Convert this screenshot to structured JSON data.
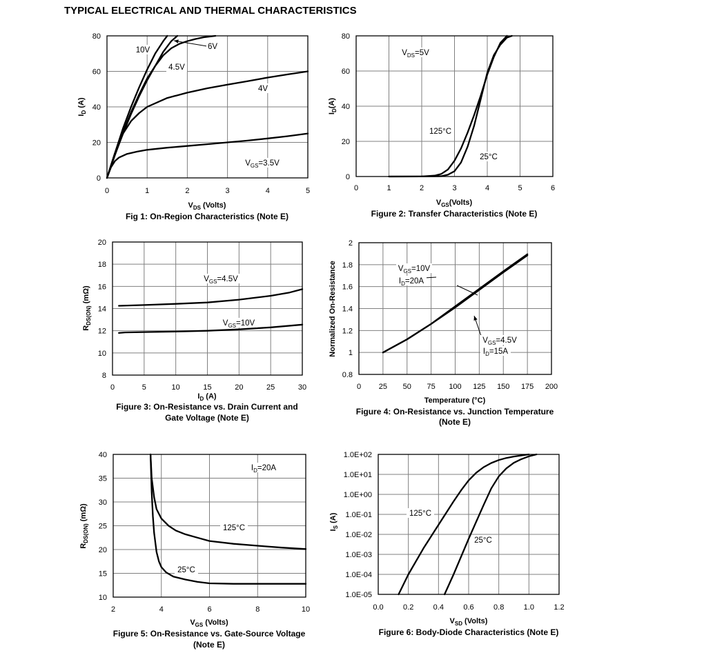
{
  "page": {
    "title": "TYPICAL ELECTRICAL AND THERMAL CHARACTERISTICS"
  },
  "chart_data": [
    {
      "id": "fig1",
      "type": "line",
      "title": "Fig 1: On-Region Characteristics (Note E)",
      "xlabel": {
        "main": "V",
        "sub": "DS",
        "rest": " (Volts)"
      },
      "ylabel": {
        "main": "I",
        "sub": "D",
        "rest": " (A)"
      },
      "xlim": [
        0,
        5
      ],
      "ylim": [
        0,
        80
      ],
      "xticks": [
        0,
        1,
        2,
        3,
        4,
        5
      ],
      "yticks": [
        0,
        20,
        40,
        60,
        80
      ],
      "xtick_labels": [
        "0",
        "1",
        "2",
        "3",
        "4",
        "5"
      ],
      "ytick_labels": [
        "0",
        "20",
        "40",
        "60",
        "80"
      ],
      "series": [
        {
          "name": "10V",
          "x": [
            0,
            0.2,
            0.4,
            0.6,
            0.8,
            1.0,
            1.2,
            1.4,
            1.5
          ],
          "y": [
            0,
            14,
            28,
            40,
            51,
            61,
            70,
            77,
            80
          ]
        },
        {
          "name": "6V",
          "x": [
            0,
            0.2,
            0.4,
            0.6,
            0.8,
            1.0,
            1.2,
            1.4,
            1.6,
            1.8,
            2.0,
            2.2,
            2.4,
            2.7
          ],
          "y": [
            0,
            13,
            26,
            37,
            47,
            56,
            63,
            69,
            73,
            75.5,
            77,
            78.2,
            79.2,
            80
          ]
        },
        {
          "name": "4.5V",
          "x": [
            0,
            0.2,
            0.4,
            0.6,
            0.8,
            1.0,
            1.2,
            1.4,
            1.6,
            1.75
          ],
          "y": [
            0,
            13,
            25,
            36,
            46,
            55,
            63,
            71,
            77,
            80
          ]
        },
        {
          "name": "4V",
          "x": [
            0,
            0.2,
            0.4,
            0.6,
            0.8,
            1.0,
            1.5,
            2.0,
            2.5,
            3.0,
            3.5,
            4.0,
            4.5,
            5.0
          ],
          "y": [
            0,
            14,
            25,
            32,
            36.5,
            40,
            45,
            48,
            50.5,
            52.5,
            54.5,
            56.5,
            58.3,
            60
          ]
        },
        {
          "name": "VGS=3.5V",
          "x": [
            0,
            0.1,
            0.2,
            0.3,
            0.5,
            0.75,
            1.0,
            1.5,
            2.0,
            2.5,
            3.0,
            3.5,
            4.0,
            4.5,
            5.0
          ],
          "y": [
            0,
            6,
            9.5,
            11.5,
            13.5,
            14.8,
            15.8,
            17,
            18,
            19,
            20,
            21,
            22.2,
            23.5,
            25
          ]
        }
      ],
      "annotations": [
        {
          "text": "10V"
        },
        {
          "text": "6V"
        },
        {
          "text": "4.5V"
        },
        {
          "text": "4V"
        },
        {
          "main": "V",
          "sub": "GS",
          "rest": "=3.5V"
        }
      ]
    },
    {
      "id": "fig2",
      "type": "line",
      "title": "Figure 2: Transfer Characteristics (Note E)",
      "xlabel": {
        "main": "V",
        "sub": "GS",
        "rest": "(Volts)"
      },
      "ylabel": {
        "main": "I",
        "sub": "D",
        "rest": "(A)"
      },
      "xlim": [
        0,
        6
      ],
      "ylim": [
        0,
        80
      ],
      "xticks": [
        0,
        1,
        2,
        3,
        4,
        5,
        6
      ],
      "yticks": [
        0,
        20,
        40,
        60,
        80
      ],
      "xtick_labels": [
        "0",
        "1",
        "2",
        "3",
        "4",
        "5",
        "6"
      ],
      "ytick_labels": [
        "0",
        "20",
        "40",
        "60",
        "80"
      ],
      "series": [
        {
          "name": "125°C",
          "x": [
            1.0,
            2.0,
            2.4,
            2.6,
            2.8,
            3.0,
            3.2,
            3.4,
            3.6,
            3.8,
            4.0,
            4.2,
            4.4,
            4.6
          ],
          "y": [
            0,
            0.05,
            0.5,
            1.5,
            4,
            9,
            16,
            25,
            35,
            46,
            58,
            68,
            76,
            80
          ]
        },
        {
          "name": "25°C",
          "x": [
            1.0,
            2.0,
            2.6,
            2.8,
            3.0,
            3.2,
            3.4,
            3.6,
            3.8,
            4.0,
            4.2,
            4.4,
            4.6,
            4.75
          ],
          "y": [
            0,
            0.05,
            0.2,
            1,
            3,
            8,
            17,
            29,
            44,
            59,
            69,
            75,
            79,
            80
          ]
        }
      ],
      "annotations": [
        {
          "main": "V",
          "sub": "DS",
          "rest": "=5V"
        },
        {
          "text": "125°C"
        },
        {
          "text": "25°C"
        }
      ]
    },
    {
      "id": "fig3",
      "type": "line",
      "title": "Figure 3: On-Resistance vs. Drain Current and",
      "title2": "Gate Voltage (Note E)",
      "xlabel": {
        "main": "I",
        "sub": "D",
        "rest": " (A)"
      },
      "ylabel": {
        "main": "R",
        "sub": "DS(ON)",
        "rest": " (mΩ)"
      },
      "xlim": [
        0,
        30
      ],
      "ylim": [
        8,
        20
      ],
      "xticks": [
        0,
        5,
        10,
        15,
        20,
        25,
        30
      ],
      "yticks": [
        8,
        10,
        12,
        14,
        16,
        18,
        20
      ],
      "xtick_labels": [
        "0",
        "5",
        "10",
        "15",
        "20",
        "25",
        "30"
      ],
      "ytick_labels": [
        "8",
        "10",
        "12",
        "14",
        "16",
        "18",
        "20"
      ],
      "series": [
        {
          "name": "VGS=4.5V",
          "x": [
            1,
            5,
            10,
            15,
            20,
            25,
            28,
            30
          ],
          "y": [
            14.25,
            14.32,
            14.42,
            14.55,
            14.8,
            15.15,
            15.45,
            15.75
          ]
        },
        {
          "name": "VGS=10V",
          "x": [
            1,
            2,
            5,
            10,
            15,
            20,
            25,
            30
          ],
          "y": [
            11.8,
            11.85,
            11.88,
            11.93,
            12.0,
            12.12,
            12.3,
            12.55
          ]
        }
      ],
      "annotations": [
        {
          "main": "V",
          "sub": "GS",
          "rest": "=4.5V"
        },
        {
          "main": "V",
          "sub": "GS",
          "rest": "=10V"
        }
      ]
    },
    {
      "id": "fig4",
      "type": "line",
      "title": "Figure 4: On-Resistance vs. Junction Temperature",
      "title2": "(Note E)",
      "xlabel": {
        "text": "Temperature (°C)"
      },
      "ylabel": {
        "text": "Normalized On-Resistance"
      },
      "xlim": [
        0,
        200
      ],
      "ylim": [
        0.8,
        2.0
      ],
      "xticks": [
        0,
        25,
        50,
        75,
        100,
        125,
        150,
        175,
        200
      ],
      "yticks": [
        0.8,
        1.0,
        1.2,
        1.4,
        1.6,
        1.8,
        2.0
      ],
      "xtick_labels": [
        "0",
        "25",
        "50",
        "75",
        "100",
        "125",
        "150",
        "175",
        "200"
      ],
      "ytick_labels": [
        "0.8",
        "1",
        "1.2",
        "1.4",
        "1.6",
        "1.8",
        "2"
      ],
      "series": [
        {
          "name": "VGS=10V ID=20A",
          "x": [
            25,
            50,
            75,
            100,
            125,
            150,
            175
          ],
          "y": [
            1.0,
            1.12,
            1.26,
            1.41,
            1.57,
            1.73,
            1.885
          ]
        },
        {
          "name": "VGS=4.5V ID=15A",
          "x": [
            25,
            50,
            75,
            100,
            125,
            150,
            175
          ],
          "y": [
            1.0,
            1.12,
            1.26,
            1.42,
            1.58,
            1.74,
            1.895
          ]
        }
      ],
      "annotations": [
        {
          "main": "V",
          "sub": "GS",
          "rest": "=10V"
        },
        {
          "main": "I",
          "sub": "D",
          "rest": "=20A"
        },
        {
          "main": "V",
          "sub": "GS",
          "rest": "=4.5V"
        },
        {
          "main": "I",
          "sub": "D",
          "rest": "=15A"
        }
      ]
    },
    {
      "id": "fig5",
      "type": "line",
      "title": "Figure 5: On-Resistance vs. Gate-Source Voltage",
      "title2": "(Note E)",
      "xlabel": {
        "main": "V",
        "sub": "GS",
        "rest": " (Volts)"
      },
      "ylabel": {
        "main": "R",
        "sub": "DS(ON)",
        "rest": " (mΩ)"
      },
      "xlim": [
        2,
        10
      ],
      "ylim": [
        10,
        40
      ],
      "xticks": [
        2,
        4,
        6,
        8,
        10
      ],
      "yticks": [
        10,
        15,
        20,
        25,
        30,
        35,
        40
      ],
      "xtick_labels": [
        "2",
        "4",
        "6",
        "8",
        "10"
      ],
      "ytick_labels": [
        "10",
        "15",
        "20",
        "25",
        "30",
        "35",
        "40"
      ],
      "series": [
        {
          "name": "125°C",
          "x": [
            3.55,
            3.6,
            3.7,
            3.8,
            4.0,
            4.3,
            4.6,
            5.0,
            5.5,
            6.0,
            7.0,
            8.0,
            9.0,
            10.0
          ],
          "y": [
            40,
            35,
            31,
            28.5,
            26.5,
            25,
            24,
            23.2,
            22.5,
            21.8,
            21.2,
            20.8,
            20.4,
            20.1
          ]
        },
        {
          "name": "25°C",
          "x": [
            3.55,
            3.6,
            3.65,
            3.7,
            3.8,
            3.9,
            4.0,
            4.2,
            4.5,
            5.0,
            5.5,
            6.0,
            7.0,
            8.0,
            9.0,
            10.0
          ],
          "y": [
            40,
            32,
            27,
            23.5,
            19.5,
            17.5,
            16.3,
            15.2,
            14.3,
            13.7,
            13.2,
            12.9,
            12.8,
            12.8,
            12.8,
            12.8
          ]
        }
      ],
      "annotations": [
        {
          "main": "I",
          "sub": "D",
          "rest": "=20A"
        },
        {
          "text": "125°C"
        },
        {
          "text": "25°C"
        }
      ]
    },
    {
      "id": "fig6",
      "type": "line",
      "log_y": true,
      "title": "Figure 6: Body-Diode Characteristics (Note E)",
      "xlabel": {
        "main": "V",
        "sub": "SD",
        "rest": " (Volts)"
      },
      "ylabel": {
        "main": "I",
        "sub": "S",
        "rest": " (A)"
      },
      "xlim": [
        0.0,
        1.2
      ],
      "ylim": [
        1e-05,
        100
      ],
      "xticks": [
        0.0,
        0.2,
        0.4,
        0.6,
        0.8,
        1.0,
        1.2
      ],
      "yticks": [
        1e-05,
        0.0001,
        0.001,
        0.01,
        0.1,
        1,
        10,
        100
      ],
      "xtick_labels": [
        "0.0",
        "0.2",
        "0.4",
        "0.6",
        "0.8",
        "1.0",
        "1.2"
      ],
      "ytick_labels": [
        "1.0E-05",
        "1.0E-04",
        "1.0E-03",
        "1.0E-02",
        "1.0E-01",
        "1.0E+00",
        "1.0E+01",
        "1.0E+02"
      ],
      "series": [
        {
          "name": "125°C",
          "x": [
            0.135,
            0.2,
            0.3,
            0.4,
            0.5,
            0.55,
            0.6,
            0.65,
            0.7,
            0.75,
            0.8,
            0.85,
            0.9,
            1.0
          ],
          "y": [
            1e-05,
            0.0001,
            0.002,
            0.03,
            0.45,
            1.6,
            5,
            12,
            23,
            37,
            52,
            66,
            78,
            100
          ]
        },
        {
          "name": "25°C",
          "x": [
            0.44,
            0.5,
            0.6,
            0.7,
            0.75,
            0.8,
            0.85,
            0.9,
            0.95,
            1.0,
            1.05
          ],
          "y": [
            1e-05,
            0.0001,
            0.006,
            0.3,
            2,
            8,
            20,
            38,
            58,
            80,
            100
          ]
        }
      ],
      "annotations": [
        {
          "text": "125°C"
        },
        {
          "text": "25°C"
        }
      ]
    }
  ]
}
